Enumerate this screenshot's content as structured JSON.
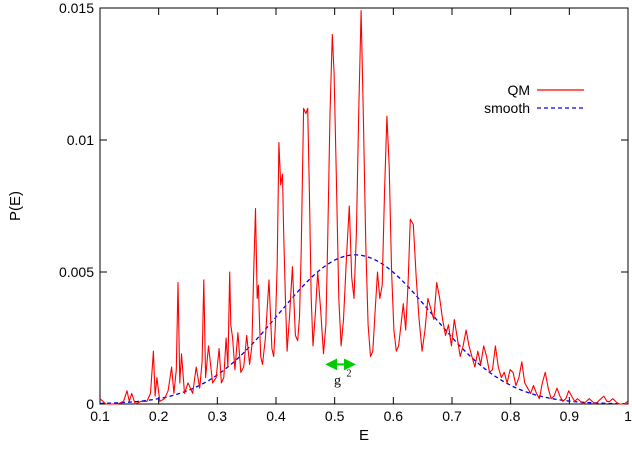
{
  "chart_data": {
    "type": "line",
    "title": "",
    "xlabel": "E",
    "ylabel": "P(E)",
    "xlim": [
      0.1,
      1.0
    ],
    "ylim": [
      0,
      0.015
    ],
    "x_ticks": [
      0.1,
      0.2,
      0.3,
      0.4,
      0.5,
      0.6,
      0.7,
      0.8,
      0.9,
      1.0
    ],
    "x_tick_labels": [
      "0.1",
      "0.2",
      "0.3",
      "0.4",
      "0.5",
      "0.6",
      "0.7",
      "0.8",
      "0.9",
      "1"
    ],
    "y_ticks": [
      0,
      0.005,
      0.01,
      0.015
    ],
    "y_tick_labels": [
      "0",
      "0.005",
      "0.01",
      "0.015"
    ],
    "grid": false,
    "legend_position": "top-right",
    "series": [
      {
        "name": "QM",
        "color": "#ff0000",
        "style": "solid",
        "x": [
          0.1,
          0.105,
          0.11,
          0.12,
          0.13,
          0.14,
          0.146,
          0.15,
          0.154,
          0.16,
          0.17,
          0.18,
          0.186,
          0.191,
          0.194,
          0.197,
          0.202,
          0.21,
          0.216,
          0.222,
          0.226,
          0.23,
          0.233,
          0.236,
          0.239,
          0.244,
          0.25,
          0.258,
          0.264,
          0.27,
          0.274,
          0.277,
          0.28,
          0.285,
          0.292,
          0.298,
          0.303,
          0.307,
          0.311,
          0.315,
          0.318,
          0.321,
          0.323,
          0.326,
          0.33,
          0.335,
          0.34,
          0.345,
          0.35,
          0.355,
          0.359,
          0.362,
          0.365,
          0.368,
          0.37,
          0.372,
          0.374,
          0.377,
          0.382,
          0.388,
          0.393,
          0.396,
          0.399,
          0.402,
          0.405,
          0.408,
          0.411,
          0.413,
          0.416,
          0.419,
          0.423,
          0.428,
          0.433,
          0.437,
          0.44,
          0.443,
          0.447,
          0.451,
          0.454,
          0.457,
          0.46,
          0.463,
          0.467,
          0.471,
          0.476,
          0.481,
          0.485,
          0.488,
          0.492,
          0.496,
          0.499,
          0.503,
          0.507,
          0.511,
          0.515,
          0.52,
          0.525,
          0.529,
          0.533,
          0.537,
          0.541,
          0.545,
          0.549,
          0.553,
          0.557,
          0.561,
          0.565,
          0.569,
          0.573,
          0.577,
          0.581,
          0.585,
          0.589,
          0.593,
          0.597,
          0.601,
          0.605,
          0.609,
          0.613,
          0.617,
          0.621,
          0.625,
          0.629,
          0.634,
          0.639,
          0.644,
          0.649,
          0.654,
          0.659,
          0.664,
          0.669,
          0.674,
          0.679,
          0.684,
          0.689,
          0.694,
          0.699,
          0.704,
          0.709,
          0.714,
          0.719,
          0.724,
          0.729,
          0.734,
          0.739,
          0.744,
          0.749,
          0.754,
          0.759,
          0.764,
          0.769,
          0.774,
          0.779,
          0.784,
          0.789,
          0.794,
          0.799,
          0.804,
          0.809,
          0.814,
          0.819,
          0.824,
          0.829,
          0.834,
          0.839,
          0.844,
          0.849,
          0.854,
          0.859,
          0.864,
          0.869,
          0.874,
          0.879,
          0.884,
          0.889,
          0.894,
          0.899,
          0.904,
          0.909,
          0.914,
          0.919,
          0.924,
          0.929,
          0.934,
          0.939,
          0.944,
          0.949,
          0.954,
          0.959,
          0.964,
          0.969,
          0.974,
          0.979,
          0.984,
          0.989,
          0.994,
          0.999
        ],
        "y": [
          0.0002,
          0.0001,
          0.0,
          0.0,
          0.0,
          0.0001,
          0.0005,
          0.0001,
          0.0004,
          0.0,
          0.0001,
          0.0001,
          0.0004,
          0.002,
          0.0003,
          0.001,
          0.0001,
          0.0002,
          0.0005,
          0.0014,
          0.0004,
          0.0013,
          0.0046,
          0.0008,
          0.0019,
          0.0004,
          0.0008,
          0.0004,
          0.0014,
          0.0006,
          0.0016,
          0.0047,
          0.001,
          0.0022,
          0.0008,
          0.001,
          0.0021,
          0.0008,
          0.001,
          0.0025,
          0.0014,
          0.005,
          0.003,
          0.0025,
          0.0013,
          0.0027,
          0.0012,
          0.0014,
          0.0026,
          0.0015,
          0.0022,
          0.005,
          0.0074,
          0.004,
          0.0045,
          0.003,
          0.0018,
          0.0015,
          0.0025,
          0.0047,
          0.0021,
          0.0018,
          0.003,
          0.0053,
          0.0099,
          0.0083,
          0.0087,
          0.0066,
          0.004,
          0.002,
          0.0033,
          0.0052,
          0.0026,
          0.0024,
          0.0033,
          0.0058,
          0.0112,
          0.011,
          0.0112,
          0.008,
          0.004,
          0.0022,
          0.0034,
          0.005,
          0.0036,
          0.0019,
          0.003,
          0.006,
          0.011,
          0.014,
          0.0125,
          0.0085,
          0.004,
          0.0022,
          0.0032,
          0.0055,
          0.0075,
          0.0048,
          0.004,
          0.0065,
          0.011,
          0.0149,
          0.0108,
          0.006,
          0.003,
          0.0018,
          0.002,
          0.0035,
          0.005,
          0.004,
          0.0045,
          0.008,
          0.0109,
          0.009,
          0.005,
          0.0028,
          0.002,
          0.0022,
          0.003,
          0.0038,
          0.0028,
          0.0045,
          0.007,
          0.0068,
          0.0048,
          0.0032,
          0.002,
          0.0028,
          0.004,
          0.0036,
          0.0032,
          0.0046,
          0.004,
          0.0032,
          0.0026,
          0.003,
          0.0022,
          0.0032,
          0.0025,
          0.0018,
          0.0022,
          0.0028,
          0.0022,
          0.0018,
          0.0014,
          0.002,
          0.0015,
          0.0022,
          0.0018,
          0.0012,
          0.0013,
          0.0022,
          0.0014,
          0.001,
          0.0012,
          0.0008,
          0.0013,
          0.0012,
          0.0007,
          0.001,
          0.0016,
          0.0008,
          0.0006,
          0.0004,
          0.0007,
          0.0004,
          0.0002,
          0.0008,
          0.0012,
          0.0006,
          0.0002,
          0.0003,
          0.0006,
          0.0003,
          0.0001,
          0.0002,
          0.0005,
          0.0003,
          0.0001,
          0.0002,
          0.0001,
          0.0,
          0.0001,
          0.0002,
          0.0001,
          0.0,
          0.0001,
          0.0002,
          0.0003,
          0.0001,
          0.0001,
          0.0002,
          0.0001,
          0.0,
          0.0,
          0.0,
          0.0001
        ]
      },
      {
        "name": "smooth",
        "color": "#0000ee",
        "style": "dashed",
        "gaussian": {
          "peak": 0.00565,
          "center": 0.535,
          "sigma": 0.13
        }
      }
    ],
    "annotations": [
      {
        "kind": "double-arrow",
        "color": "#00cc00",
        "x_from": 0.488,
        "x_to": 0.532,
        "y": 0.0015,
        "label": "g",
        "label_sup": "2"
      }
    ]
  }
}
